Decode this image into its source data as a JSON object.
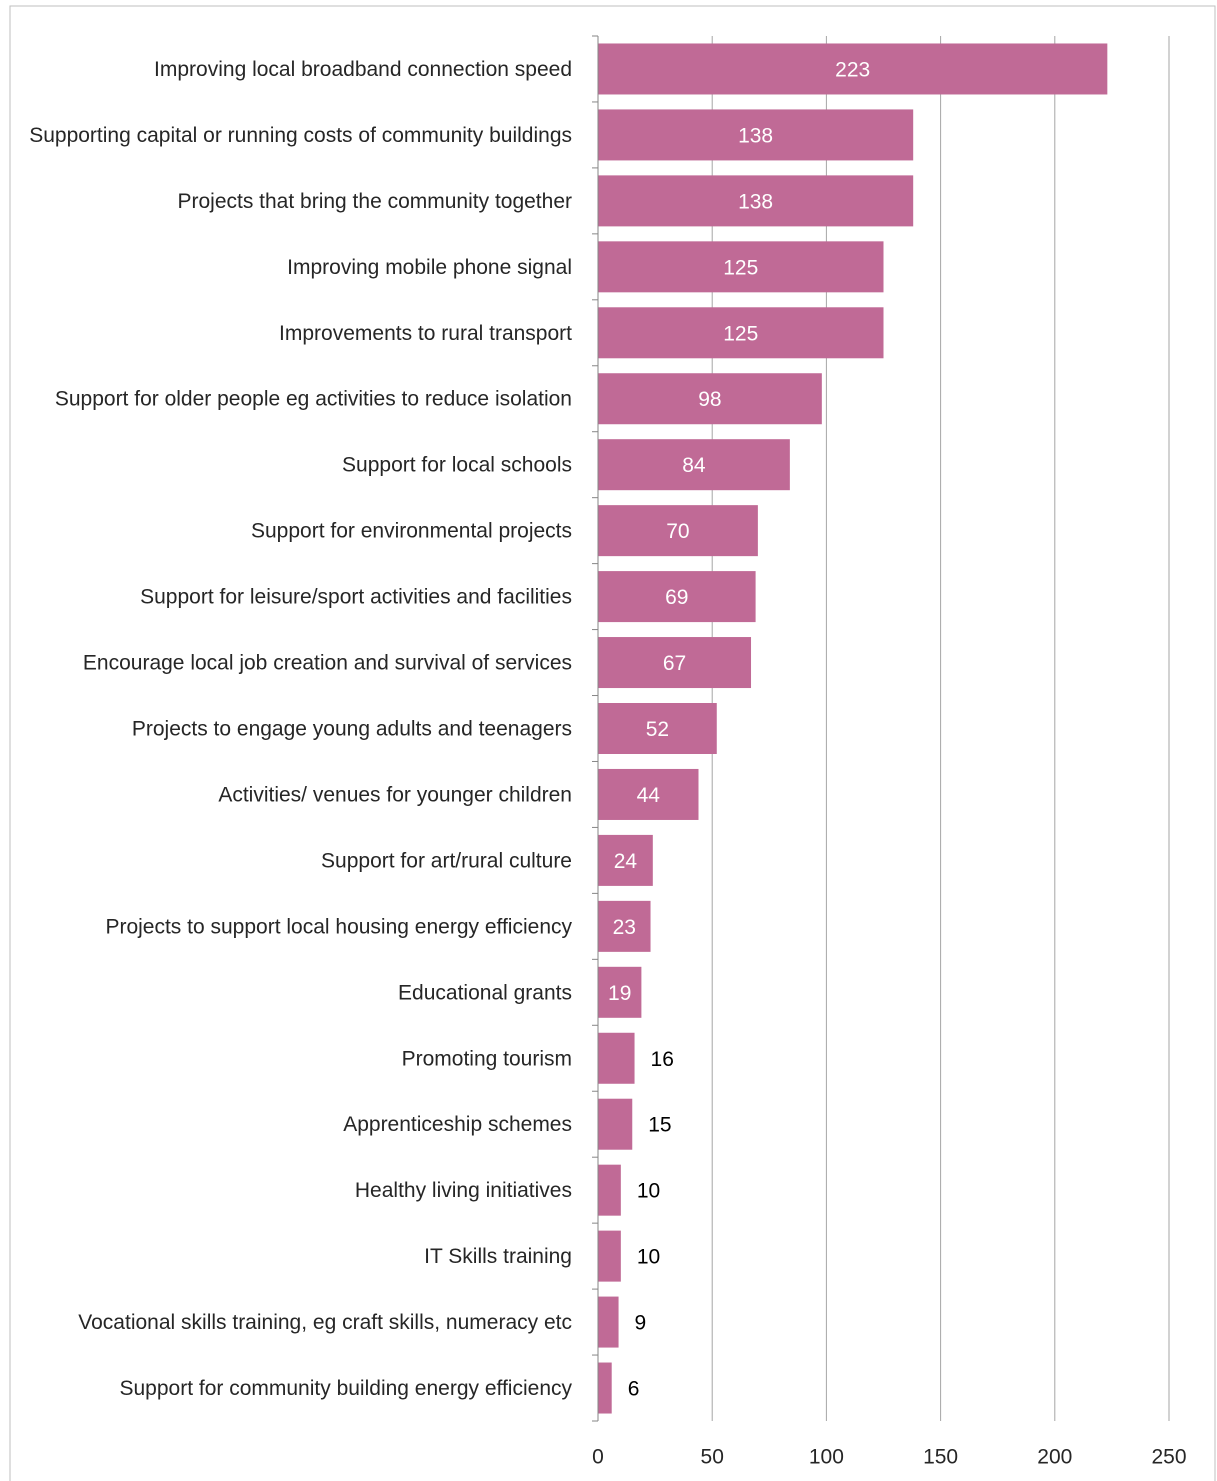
{
  "chart_data": {
    "type": "bar",
    "orientation": "horizontal",
    "categories": [
      "Improving local broadband connection speed",
      "Supporting capital or running costs of community buildings",
      "Projects that bring the community together",
      "Improving mobile phone signal",
      "Improvements to rural transport",
      "Support for older people eg activities to reduce isolation",
      "Support for local schools",
      "Support for environmental projects",
      "Support for leisure/sport activities and facilities",
      "Encourage local job creation and survival of services",
      "Projects to engage young adults and teenagers",
      "Activities/ venues for younger children",
      "Support for art/rural culture",
      "Projects to support local housing energy efficiency",
      "Educational grants",
      "Promoting tourism",
      "Apprenticeship schemes",
      "Healthy living initiatives",
      "IT Skills training",
      "Vocational skills training, eg craft skills, numeracy etc",
      "Support for community building energy efficiency"
    ],
    "values": [
      223,
      138,
      138,
      125,
      125,
      98,
      84,
      70,
      69,
      67,
      52,
      44,
      24,
      23,
      19,
      16,
      15,
      10,
      10,
      9,
      6
    ],
    "xlim": [
      0,
      250
    ],
    "xticks": [
      0,
      50,
      100,
      150,
      200,
      250
    ],
    "grid": "vertical",
    "legend": "none",
    "title": "",
    "xlabel": "",
    "ylabel": "",
    "colors": {
      "bar": "#c06a96",
      "grid": "#a6a6a6",
      "axis": "#868686",
      "label_inside": "#ffffff",
      "label_outside": "#000000"
    }
  }
}
